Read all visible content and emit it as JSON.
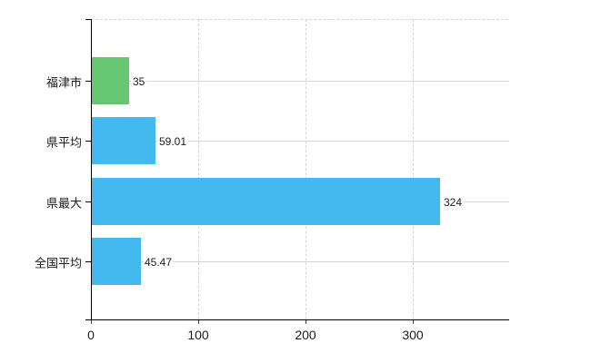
{
  "chart_data": {
    "type": "bar",
    "orientation": "horizontal",
    "title": "",
    "xlabel": "",
    "ylabel": "",
    "categories": [
      "福津市",
      "県平均",
      "県最大",
      "全国平均"
    ],
    "values": [
      35,
      59.01,
      324,
      45.47
    ],
    "value_labels": [
      "35",
      "59.01",
      "324",
      "45.47"
    ],
    "bar_colors": [
      "#67c672",
      "#44b9f0",
      "#44b9f0",
      "#44b9f0"
    ],
    "xticks": [
      0,
      100,
      200,
      300
    ],
    "xtick_labels": [
      "0",
      "100",
      "200",
      "300"
    ],
    "xlim": [
      0,
      388.8
    ],
    "grid": {
      "vertical": "dashed",
      "horizontal": "solid",
      "top_border": "dashed"
    },
    "legend": "none"
  },
  "colors": {
    "background": "#ffffff",
    "grid": "#d5d5d5",
    "axis": "#000000",
    "text": "#1c1c1c"
  }
}
